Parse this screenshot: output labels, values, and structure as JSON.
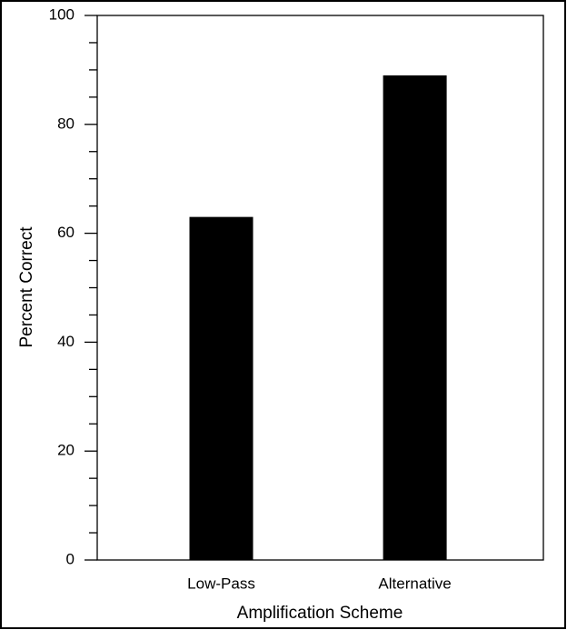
{
  "chart_data": {
    "type": "bar",
    "x_label": "Amplification Scheme",
    "y_label": "Percent Correct",
    "categories": [
      "Low-Pass",
      "Alternative"
    ],
    "values": [
      63,
      89
    ],
    "color": "#000000",
    "ylim": [
      0,
      100
    ],
    "yticks": [
      0,
      20,
      40,
      60,
      80,
      100
    ],
    "yminorticks": [
      5,
      10,
      15,
      25,
      30,
      35,
      45,
      50,
      55,
      65,
      70,
      75,
      85,
      90,
      95
    ]
  }
}
